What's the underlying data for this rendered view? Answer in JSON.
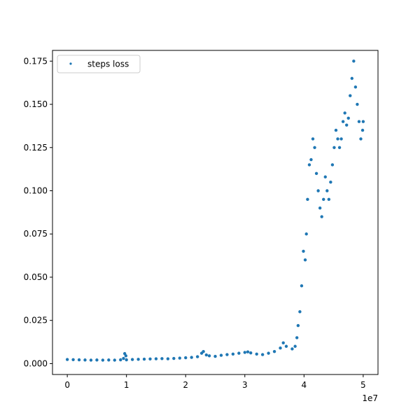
{
  "chart_data": {
    "type": "scatter",
    "title": "",
    "xlabel": "",
    "ylabel": "",
    "x_offset_label": "1e7",
    "xlim": [
      -2500000,
      52500000
    ],
    "ylim": [
      -0.0063,
      0.1812
    ],
    "xticks": [
      0,
      10000000,
      20000000,
      30000000,
      40000000,
      50000000
    ],
    "xtick_labels": [
      "0",
      "1",
      "2",
      "3",
      "4",
      "5"
    ],
    "yticks": [
      0.0,
      0.025,
      0.05,
      0.075,
      0.1,
      0.125,
      0.15,
      0.175
    ],
    "ytick_labels": [
      "0.000",
      "0.025",
      "0.050",
      "0.075",
      "0.100",
      "0.125",
      "0.150",
      "0.175"
    ],
    "grid": false,
    "legend_position": "upper-left",
    "series": [
      {
        "name": "steps loss",
        "color": "#1f77b4",
        "points": [
          [
            0,
            0.0024
          ],
          [
            1000000,
            0.0023
          ],
          [
            2000000,
            0.0022
          ],
          [
            3000000,
            0.0021
          ],
          [
            4000000,
            0.002
          ],
          [
            5000000,
            0.0021
          ],
          [
            6000000,
            0.002
          ],
          [
            7000000,
            0.0021
          ],
          [
            8000000,
            0.002
          ],
          [
            9000000,
            0.0022
          ],
          [
            9500000,
            0.003
          ],
          [
            9700000,
            0.0058
          ],
          [
            9900000,
            0.0045
          ],
          [
            10000000,
            0.0022
          ],
          [
            11000000,
            0.0024
          ],
          [
            12000000,
            0.0025
          ],
          [
            13000000,
            0.0026
          ],
          [
            14000000,
            0.0027
          ],
          [
            15000000,
            0.0028
          ],
          [
            16000000,
            0.0029
          ],
          [
            17000000,
            0.0028
          ],
          [
            18000000,
            0.003
          ],
          [
            19000000,
            0.0032
          ],
          [
            20000000,
            0.0034
          ],
          [
            21000000,
            0.0036
          ],
          [
            22000000,
            0.004
          ],
          [
            22700000,
            0.006
          ],
          [
            23000000,
            0.007
          ],
          [
            23500000,
            0.005
          ],
          [
            24000000,
            0.0045
          ],
          [
            25000000,
            0.0042
          ],
          [
            26000000,
            0.0048
          ],
          [
            27000000,
            0.0052
          ],
          [
            28000000,
            0.0055
          ],
          [
            29000000,
            0.006
          ],
          [
            30000000,
            0.0065
          ],
          [
            30500000,
            0.0068
          ],
          [
            31000000,
            0.0062
          ],
          [
            32000000,
            0.0055
          ],
          [
            33000000,
            0.0052
          ],
          [
            34000000,
            0.006
          ],
          [
            35000000,
            0.007
          ],
          [
            36000000,
            0.009
          ],
          [
            36500000,
            0.012
          ],
          [
            37000000,
            0.01
          ],
          [
            38000000,
            0.0085
          ],
          [
            38500000,
            0.01
          ],
          [
            38800000,
            0.015
          ],
          [
            39000000,
            0.022
          ],
          [
            39300000,
            0.03
          ],
          [
            39600000,
            0.045
          ],
          [
            39900000,
            0.065
          ],
          [
            40200000,
            0.06
          ],
          [
            40400000,
            0.075
          ],
          [
            40600000,
            0.095
          ],
          [
            40900000,
            0.115
          ],
          [
            41200000,
            0.118
          ],
          [
            41500000,
            0.13
          ],
          [
            41800000,
            0.125
          ],
          [
            42100000,
            0.11
          ],
          [
            42400000,
            0.1
          ],
          [
            42700000,
            0.09
          ],
          [
            43000000,
            0.085
          ],
          [
            43300000,
            0.095
          ],
          [
            43600000,
            0.108
          ],
          [
            43900000,
            0.1
          ],
          [
            44200000,
            0.095
          ],
          [
            44500000,
            0.105
          ],
          [
            44800000,
            0.115
          ],
          [
            45100000,
            0.125
          ],
          [
            45400000,
            0.135
          ],
          [
            45700000,
            0.13
          ],
          [
            46000000,
            0.125
          ],
          [
            46300000,
            0.13
          ],
          [
            46600000,
            0.14
          ],
          [
            46900000,
            0.145
          ],
          [
            47200000,
            0.138
          ],
          [
            47500000,
            0.142
          ],
          [
            47800000,
            0.155
          ],
          [
            48100000,
            0.165
          ],
          [
            48400000,
            0.175
          ],
          [
            48700000,
            0.16
          ],
          [
            49000000,
            0.15
          ],
          [
            49300000,
            0.14
          ],
          [
            49600000,
            0.13
          ],
          [
            49900000,
            0.135
          ],
          [
            50000000,
            0.14
          ]
        ]
      }
    ]
  }
}
